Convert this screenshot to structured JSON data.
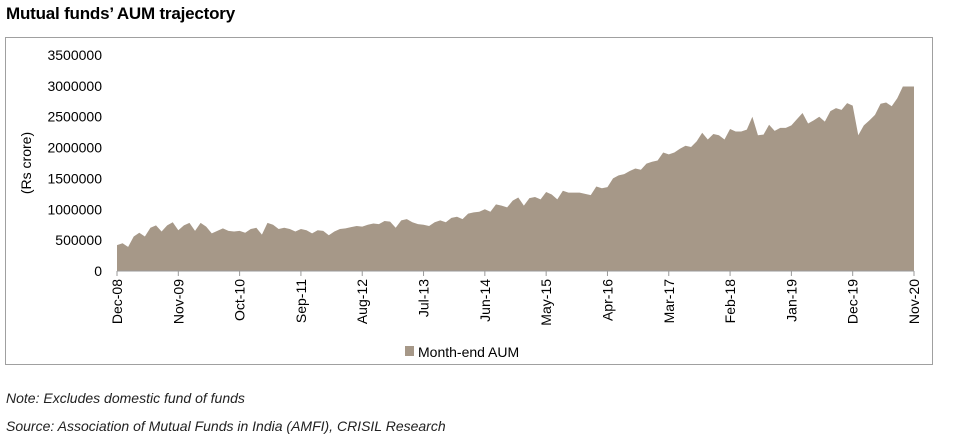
{
  "title": "Mutual funds’ AUM trajectory",
  "notes": {
    "note": "Note: Excludes domestic fund of funds",
    "source": "Source: Association of Mutual Funds in India (AMFI), CRISIL Research"
  },
  "chart_data": {
    "type": "area",
    "title": "Mutual funds’ AUM trajectory",
    "xlabel": "",
    "ylabel": "(Rs crore)",
    "ylim": [
      0,
      3500000
    ],
    "yticks": [
      0,
      500000,
      1000000,
      1500000,
      2000000,
      2500000,
      3000000,
      3500000
    ],
    "ytick_labels": [
      "0",
      "500000",
      "1000000",
      "1500000",
      "2000000",
      "2500000",
      "3000000",
      "3500000"
    ],
    "xtick_labels": [
      "Dec-08",
      "Nov-09",
      "Oct-10",
      "Sep-11",
      "Aug-12",
      "Jul-13",
      "Jun-14",
      "May-15",
      "Apr-16",
      "Mar-17",
      "Feb-18",
      "Jan-19",
      "Dec-19",
      "Nov-20"
    ],
    "xtick_step_months": 11,
    "x_start": "Dec-08",
    "x_end": "Nov-20",
    "grid": false,
    "legend": {
      "position": "bottom",
      "entries": [
        "Month-end AUM"
      ]
    },
    "colors": {
      "area": "#a69888",
      "axis": "#999999"
    },
    "series": [
      {
        "name": "Month-end AUM",
        "values": [
          420000,
          450000,
          390000,
          560000,
          620000,
          560000,
          700000,
          740000,
          640000,
          740000,
          790000,
          660000,
          740000,
          780000,
          650000,
          780000,
          720000,
          610000,
          650000,
          690000,
          650000,
          640000,
          650000,
          620000,
          680000,
          700000,
          590000,
          780000,
          750000,
          680000,
          700000,
          680000,
          640000,
          680000,
          660000,
          610000,
          660000,
          650000,
          580000,
          640000,
          680000,
          690000,
          710000,
          730000,
          720000,
          750000,
          770000,
          760000,
          810000,
          800000,
          700000,
          820000,
          840000,
          790000,
          760000,
          750000,
          730000,
          790000,
          820000,
          790000,
          860000,
          880000,
          840000,
          930000,
          950000,
          960000,
          1000000,
          960000,
          1080000,
          1060000,
          1030000,
          1140000,
          1190000,
          1060000,
          1180000,
          1200000,
          1160000,
          1280000,
          1240000,
          1160000,
          1300000,
          1270000,
          1270000,
          1270000,
          1250000,
          1230000,
          1370000,
          1340000,
          1360000,
          1500000,
          1550000,
          1570000,
          1620000,
          1660000,
          1640000,
          1740000,
          1770000,
          1790000,
          1920000,
          1890000,
          1920000,
          1980000,
          2030000,
          2010000,
          2100000,
          2240000,
          2130000,
          2220000,
          2200000,
          2130000,
          2300000,
          2260000,
          2260000,
          2290000,
          2500000,
          2200000,
          2210000,
          2370000,
          2270000,
          2320000,
          2320000,
          2360000,
          2460000,
          2560000,
          2390000,
          2440000,
          2500000,
          2420000,
          2590000,
          2640000,
          2610000,
          2720000,
          2680000,
          2200000,
          2360000,
          2440000,
          2530000,
          2710000,
          2730000,
          2670000,
          2800000,
          2990000,
          2990000,
          2990000
        ]
      }
    ]
  }
}
